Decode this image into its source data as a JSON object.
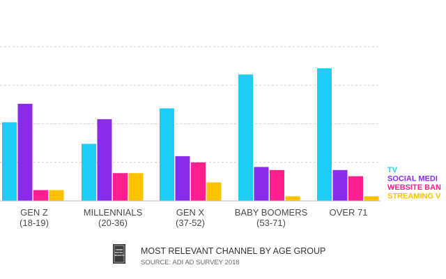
{
  "chart_data": {
    "type": "bar",
    "categories": [
      "GEN Z\n(18-19)",
      "MILLENNIALS\n(20-36)",
      "GEN X\n(37-52)",
      "BABY BOOMERS\n(53-71)",
      "OVER 71"
    ],
    "series": [
      {
        "name": "TV",
        "color": "#1ecdf3",
        "values": [
          51,
          37,
          60,
          82,
          86
        ]
      },
      {
        "name": "SOCIAL MEDIA",
        "color": "#8a2be8",
        "values": [
          63,
          53,
          29,
          22,
          20
        ]
      },
      {
        "name": "WEBSITE BANNERS",
        "color": "#ff1f8e",
        "values": [
          7,
          18,
          25,
          20,
          16
        ]
      },
      {
        "name": "STREAMING VIDEO",
        "color": "#ffc000",
        "values": [
          7,
          18,
          12,
          3,
          3
        ]
      }
    ],
    "legend_labels": [
      "TV",
      "SOCIAL MEDI",
      "WEBSITE BAN",
      "STREAMING V"
    ],
    "ylim": [
      0,
      100
    ],
    "grid": true,
    "legend_position": "right",
    "title": "",
    "xlabel": "",
    "ylabel": ""
  },
  "footer": {
    "title": "MOST RELEVANT CHANNEL BY AGE GROUP",
    "source": "SOURCE: ADI AD SURVEY 2018",
    "logo_lines": [
      "ADOBE",
      "DIGITAL",
      "INSIGHTS"
    ]
  }
}
